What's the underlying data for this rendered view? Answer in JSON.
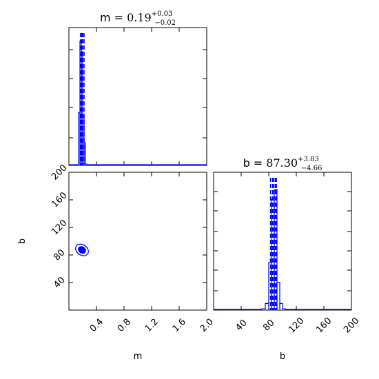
{
  "colors": {
    "line": "#0000ff",
    "axis": "#000000",
    "background": "#ffffff"
  },
  "titles": {
    "m": {
      "prefix": "m = ",
      "value": "0.19",
      "plus": "+0.03",
      "minus": "−0.02"
    },
    "b": {
      "prefix": "b = ",
      "value": "87.30",
      "plus": "+3.83",
      "minus": "−4.66"
    }
  },
  "chart_data": [
    {
      "type": "histogram",
      "panel": "m-marginal",
      "variable": "m",
      "xlim": [
        0,
        2.0
      ],
      "bins": [
        {
          "x0": 0.14,
          "x1": 0.16,
          "count": 0.4
        },
        {
          "x0": 0.16,
          "x1": 0.18,
          "count": 0.94
        },
        {
          "x0": 0.18,
          "x1": 0.2,
          "count": 0.86
        },
        {
          "x0": 0.2,
          "x1": 0.22,
          "count": 0.37
        },
        {
          "x0": 0.22,
          "x1": 0.24,
          "count": 0.17
        },
        {
          "x0": 0.24,
          "x1": 0.26,
          "count": 0.01
        }
      ],
      "quantiles": [
        0.17,
        0.19,
        0.22
      ],
      "peak_markers": [
        0.18,
        0.2
      ]
    },
    {
      "type": "histogram",
      "panel": "b-marginal",
      "variable": "b",
      "xlim": [
        0,
        200
      ],
      "xlabel": "b",
      "xticks": [
        "40",
        "80",
        "120",
        "160",
        "200"
      ],
      "bins": [
        {
          "x0": 70,
          "x1": 75,
          "count": 0.01
        },
        {
          "x0": 75,
          "x1": 80,
          "count": 0.05
        },
        {
          "x0": 80,
          "x1": 84,
          "count": 0.36
        },
        {
          "x0": 84,
          "x1": 88,
          "count": 0.84
        },
        {
          "x0": 88,
          "x1": 92,
          "count": 0.91
        },
        {
          "x0": 92,
          "x1": 96,
          "count": 0.21
        },
        {
          "x0": 96,
          "x1": 100,
          "count": 0.05
        },
        {
          "x0": 100,
          "x1": 104,
          "count": 0.01
        }
      ],
      "quantiles": [
        82.6,
        87.3,
        91.1
      ],
      "peak_markers": [
        85.5,
        89.5
      ]
    },
    {
      "type": "contour",
      "panel": "m-b-joint",
      "x": "m",
      "y": "b",
      "xlim": [
        0,
        2.0
      ],
      "ylim": [
        0,
        200
      ],
      "xlabel": "m",
      "ylabel": "b",
      "xticks": [
        "0.4",
        "0.8",
        "1.2",
        "1.6",
        "2.0"
      ],
      "yticks": [
        "40",
        "80",
        "120",
        "160",
        "200"
      ],
      "contours": [
        {
          "cx": 0.19,
          "cy": 87.3,
          "rx": 0.1,
          "ry": 7.5,
          "angle": 35,
          "fill": false
        },
        {
          "cx": 0.19,
          "cy": 87.3,
          "rx": 0.055,
          "ry": 4.5,
          "angle": 35,
          "fill": true
        }
      ]
    }
  ]
}
